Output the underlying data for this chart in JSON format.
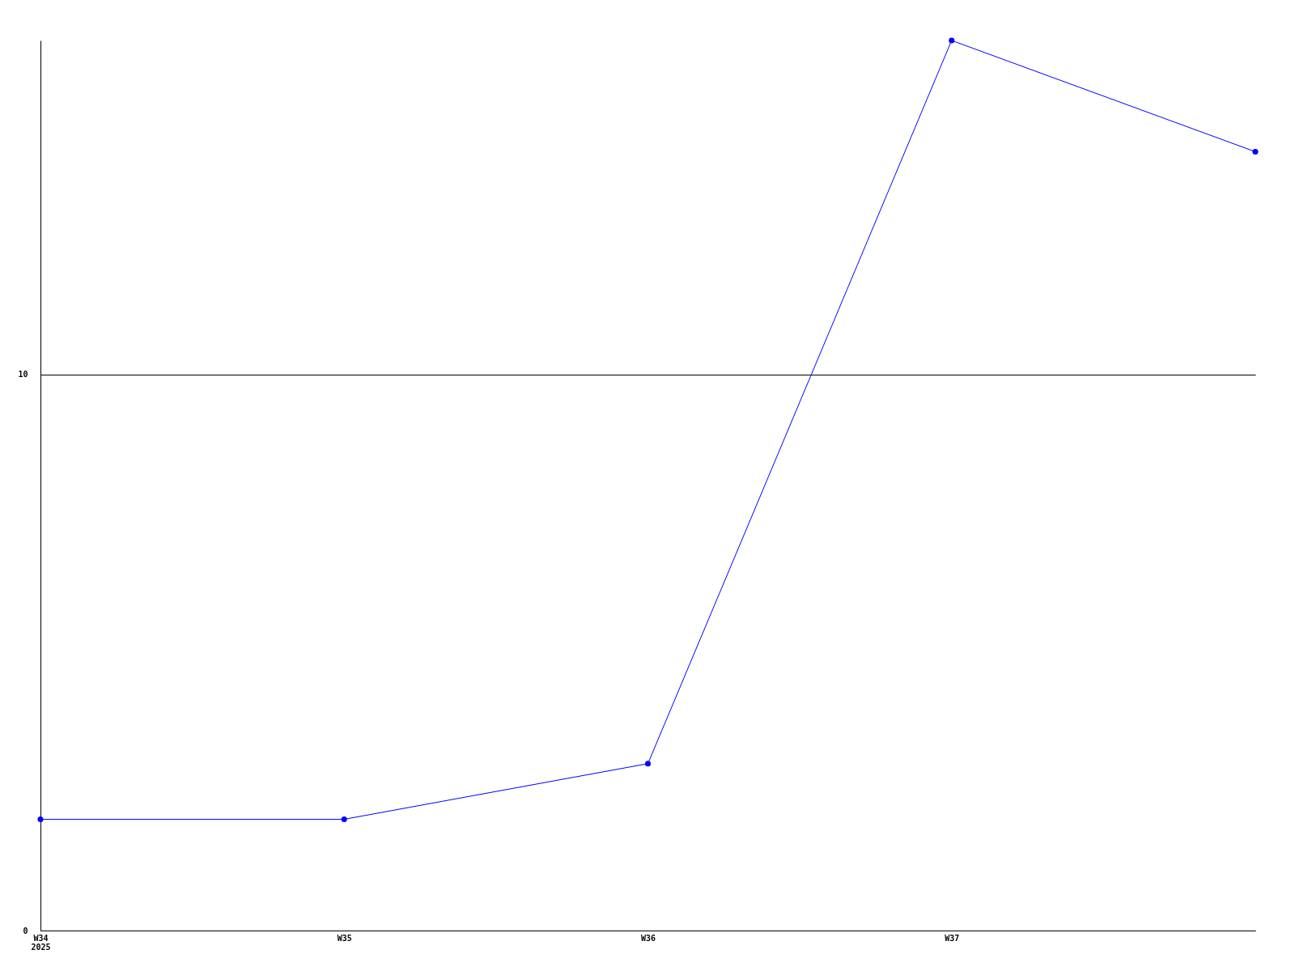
{
  "chart_data": {
    "type": "line",
    "categories": [
      "W34\n2025",
      "W35",
      "W36",
      "W37",
      null
    ],
    "series": [
      {
        "color": "#0000ff",
        "values": [
          2,
          2,
          3,
          16,
          14
        ]
      }
    ],
    "ylim": [
      0,
      16
    ],
    "yticks": [
      0,
      10
    ],
    "grid": "y",
    "marker": "circle",
    "line_style": "solid"
  }
}
